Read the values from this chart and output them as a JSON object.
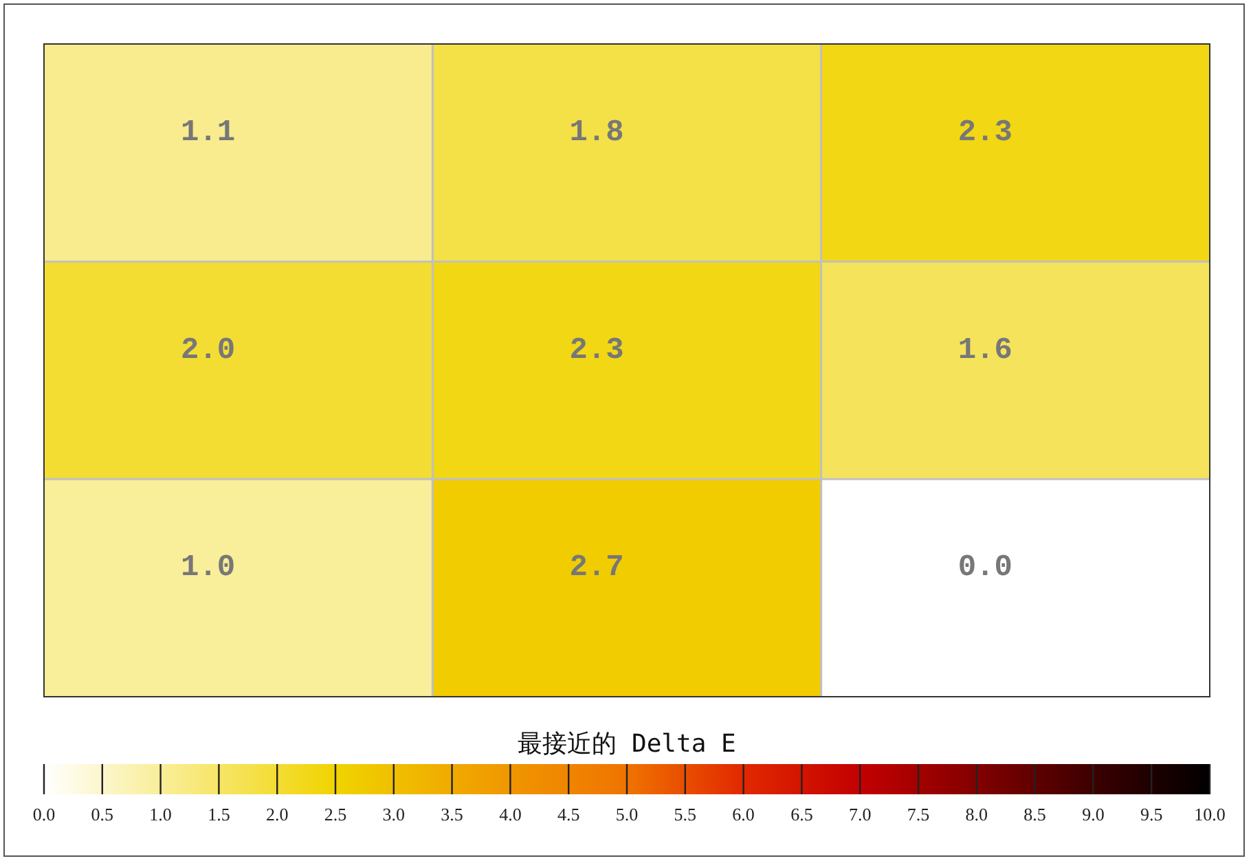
{
  "chart_data": {
    "type": "heatmap",
    "clabel": "最接近的 Delta E",
    "categories": [
      null,
      null,
      null
    ],
    "y_categories": [
      null,
      null,
      null
    ],
    "cells": [
      [
        1.1,
        1.8,
        2.3
      ],
      [
        2.0,
        2.3,
        1.6
      ],
      [
        1.0,
        2.7,
        0.0
      ]
    ],
    "cell_labels": [
      [
        "1.1",
        "1.8",
        "2.3"
      ],
      [
        "2.0",
        "2.3",
        "1.6"
      ],
      [
        "1.0",
        "2.7",
        "0.0"
      ]
    ],
    "grid": true,
    "clim": [
      0,
      10
    ],
    "cticks": [
      {
        "value": 0,
        "label": "0.0"
      },
      {
        "value": 0.5,
        "label": "0.5"
      },
      {
        "value": 1,
        "label": "1.0"
      },
      {
        "value": 1.5,
        "label": "1.5"
      },
      {
        "value": 2,
        "label": "2.0"
      },
      {
        "value": 2.5,
        "label": "2.5"
      },
      {
        "value": 3,
        "label": "3.0"
      },
      {
        "value": 3.5,
        "label": "3.5"
      },
      {
        "value": 4,
        "label": "4.0"
      },
      {
        "value": 4.5,
        "label": "4.5"
      },
      {
        "value": 5,
        "label": "5.0"
      },
      {
        "value": 5.5,
        "label": "5.5"
      },
      {
        "value": 6,
        "label": "6.0"
      },
      {
        "value": 6.5,
        "label": "6.5"
      },
      {
        "value": 7,
        "label": "7.0"
      },
      {
        "value": 7.5,
        "label": "7.5"
      },
      {
        "value": 8,
        "label": "8.0"
      },
      {
        "value": 8.5,
        "label": "8.5"
      },
      {
        "value": 9,
        "label": "9.0"
      },
      {
        "value": 9.5,
        "label": "9.5"
      },
      {
        "value": 10,
        "label": "10.0"
      }
    ]
  }
}
